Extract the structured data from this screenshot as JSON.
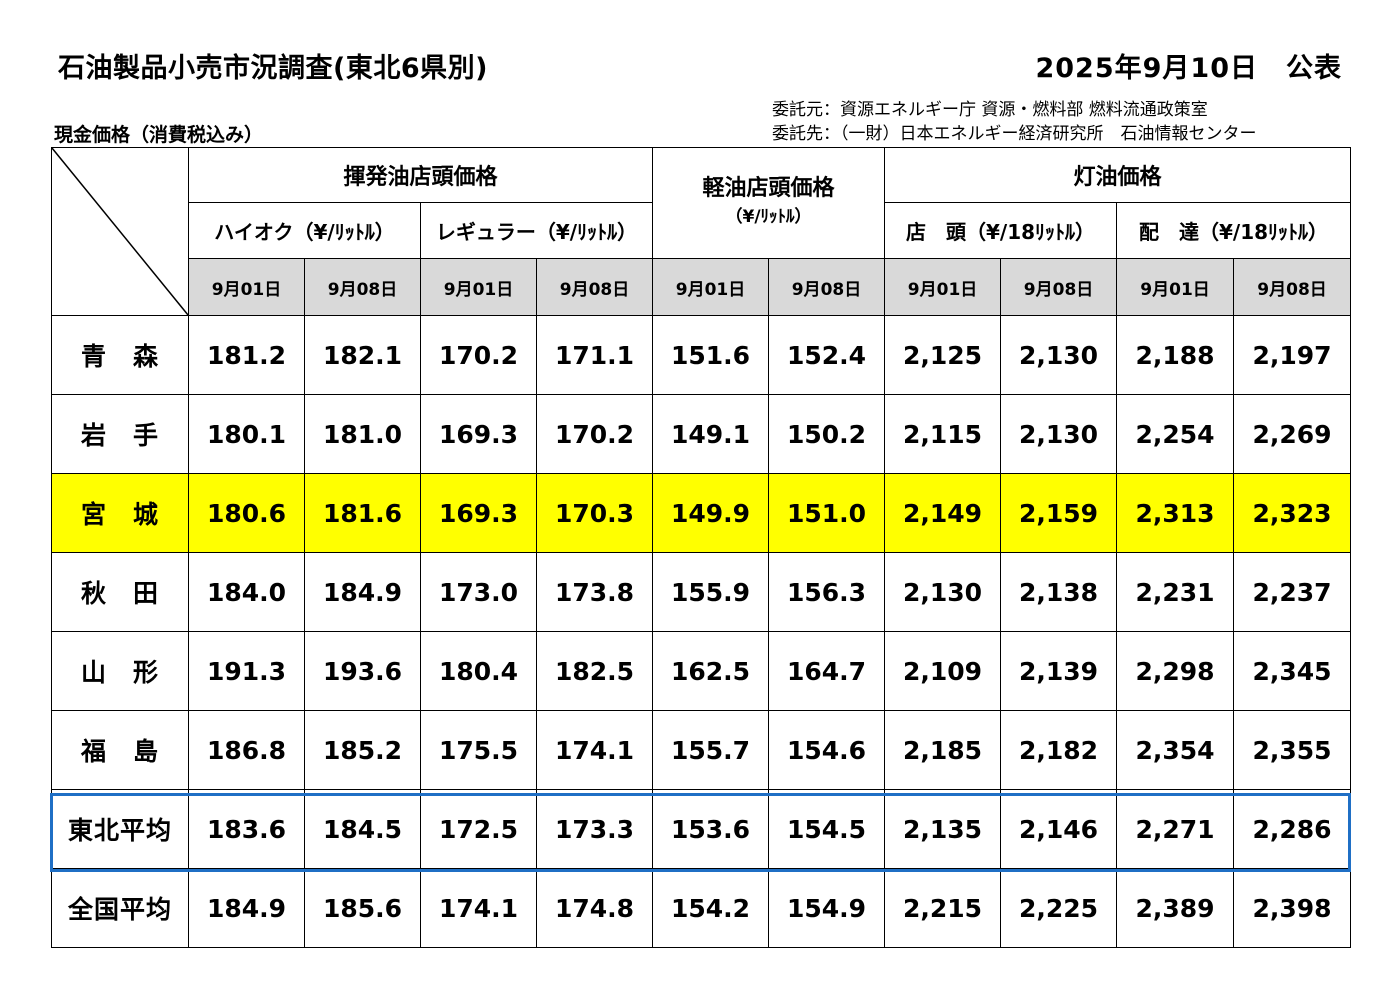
{
  "header": {
    "title": "石油製品小売市況調査(東北6県別)",
    "date": "2025年9月10日",
    "status": "公表",
    "commissioner": "委託元：資源エネルギー庁 資源・燃料部 燃料流通政策室",
    "contractor": "委託先：（一財）日本エネルギー経済研究所　石油情報センター",
    "subtitle": "現金価格（消費税込み）"
  },
  "table": {
    "groups": {
      "gasoline": "揮発油店頭価格",
      "diesel": "軽油店頭価格",
      "diesel_unit": "（¥/ﾘｯﾄﾙ）",
      "kerosene": "灯油価格"
    },
    "subs": {
      "high_octane": "ハイオク（¥/ﾘｯﾄﾙ）",
      "regular": "レギュラー（¥/ﾘｯﾄﾙ）",
      "store": "店　頭（¥/18ﾘｯﾄﾙ）",
      "delivery": "配　達（¥/18ﾘｯﾄﾙ）"
    },
    "dates": [
      "9月01日",
      "9月08日",
      "9月01日",
      "9月08日",
      "9月01日",
      "9月08日",
      "9月01日",
      "9月08日",
      "9月01日",
      "9月08日"
    ],
    "rows": [
      {
        "name": "青　森",
        "values": [
          "181.2",
          "182.1",
          "170.2",
          "171.1",
          "151.6",
          "152.4",
          "2,125",
          "2,130",
          "2,188",
          "2,197"
        ]
      },
      {
        "name": "岩　手",
        "values": [
          "180.1",
          "181.0",
          "169.3",
          "170.2",
          "149.1",
          "150.2",
          "2,115",
          "2,130",
          "2,254",
          "2,269"
        ]
      },
      {
        "name": "宮　城",
        "values": [
          "180.6",
          "181.6",
          "169.3",
          "170.3",
          "149.9",
          "151.0",
          "2,149",
          "2,159",
          "2,313",
          "2,323"
        ]
      },
      {
        "name": "秋　田",
        "values": [
          "184.0",
          "184.9",
          "173.0",
          "173.8",
          "155.9",
          "156.3",
          "2,130",
          "2,138",
          "2,231",
          "2,237"
        ]
      },
      {
        "name": "山　形",
        "values": [
          "191.3",
          "193.6",
          "180.4",
          "182.5",
          "162.5",
          "164.7",
          "2,109",
          "2,139",
          "2,298",
          "2,345"
        ]
      },
      {
        "name": "福　島",
        "values": [
          "186.8",
          "185.2",
          "175.5",
          "174.1",
          "155.7",
          "154.6",
          "2,185",
          "2,182",
          "2,354",
          "2,355"
        ]
      },
      {
        "name": "東北平均",
        "values": [
          "183.6",
          "184.5",
          "172.5",
          "173.3",
          "153.6",
          "154.5",
          "2,135",
          "2,146",
          "2,271",
          "2,286"
        ]
      },
      {
        "name": "全国平均",
        "values": [
          "184.9",
          "185.6",
          "174.1",
          "174.8",
          "154.2",
          "154.9",
          "2,215",
          "2,225",
          "2,389",
          "2,398"
        ]
      }
    ]
  }
}
